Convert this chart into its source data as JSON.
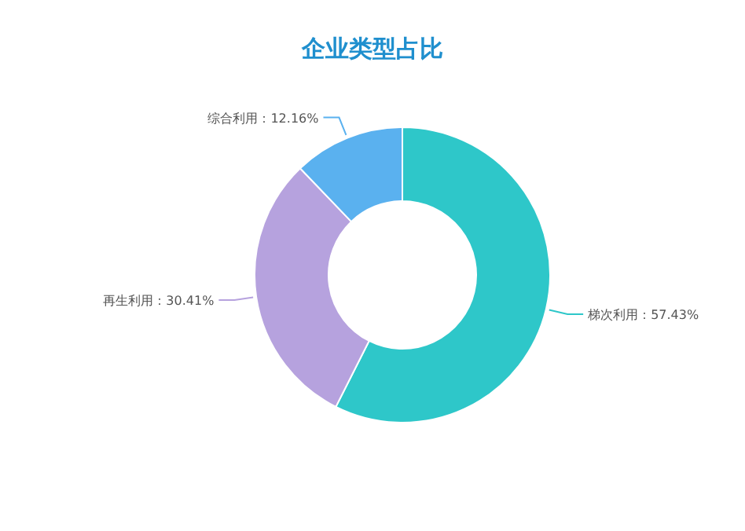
{
  "chart_data": {
    "type": "donut",
    "title": "企业类型占比",
    "categories": [
      "梯次利用",
      "再生利用",
      "综合利用"
    ],
    "values": [
      57.43,
      30.41,
      12.16
    ],
    "value_labels": [
      "57.43%",
      "30.41%",
      "12.16%"
    ],
    "colors": [
      "#2ec7c9",
      "#b6a2de",
      "#5ab1ef"
    ],
    "legend": false
  }
}
